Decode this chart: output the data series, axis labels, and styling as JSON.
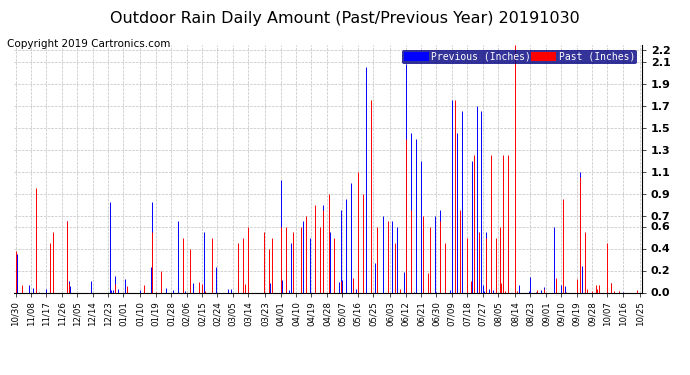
{
  "title": "Outdoor Rain Daily Amount (Past/Previous Year) 20191030",
  "copyright": "Copyright 2019 Cartronics.com",
  "legend_labels": [
    "Previous (Inches)",
    "Past (Inches)"
  ],
  "legend_colors": [
    "#0000FF",
    "#FF0000"
  ],
  "previous_color": "#0000FF",
  "past_color": "#FF0000",
  "ylim": [
    0.0,
    2.25
  ],
  "yticks": [
    0.0,
    0.2,
    0.4,
    0.6,
    0.7,
    0.9,
    1.1,
    1.3,
    1.5,
    1.7,
    1.9,
    2.1,
    2.2
  ],
  "background_color": "#ffffff",
  "grid_color": "#b0b0b0",
  "title_fontsize": 11.5,
  "copyright_fontsize": 7.5,
  "x_labels": [
    "10/30",
    "11/08",
    "11/17",
    "11/26",
    "12/05",
    "12/14",
    "12/23",
    "01/01",
    "01/10",
    "01/19",
    "01/28",
    "02/06",
    "02/15",
    "02/24",
    "03/05",
    "03/14",
    "03/23",
    "04/01",
    "04/10",
    "04/19",
    "04/28",
    "05/07",
    "05/16",
    "05/25",
    "06/03",
    "06/12",
    "06/21",
    "06/30",
    "07/09",
    "07/18",
    "07/27",
    "08/05",
    "08/14",
    "08/23",
    "09/01",
    "09/10",
    "09/19",
    "09/28",
    "10/07",
    "10/16",
    "10/25"
  ],
  "n_days": 366
}
